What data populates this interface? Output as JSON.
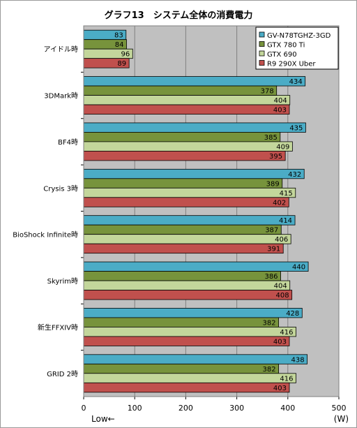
{
  "chart_data": {
    "type": "bar",
    "orientation": "horizontal",
    "title": "グラフ13　システム全体の消費電力",
    "categories": [
      "アイドル時",
      "3DMark時",
      "BF4時",
      "Crysis 3時",
      "BioShock Infinite時",
      "Skyrim時",
      "新生FFXIV時",
      "GRID 2時"
    ],
    "series": [
      {
        "name": "GV-N78TGHZ-3GD",
        "color": "#4bacc6",
        "values": [
          83,
          434,
          435,
          432,
          414,
          440,
          428,
          438
        ]
      },
      {
        "name": "GTX 780 Ti",
        "color": "#77933c",
        "values": [
          84,
          378,
          385,
          389,
          387,
          386,
          382,
          382
        ]
      },
      {
        "name": "GTX 690",
        "color": "#c3d69b",
        "values": [
          96,
          404,
          409,
          415,
          406,
          404,
          416,
          416
        ]
      },
      {
        "name": "R9 290X Uber",
        "color": "#c0504d",
        "values": [
          89,
          403,
          395,
          402,
          391,
          408,
          403,
          403
        ]
      }
    ],
    "xlim": [
      0,
      500
    ],
    "xticks": [
      "0",
      "100",
      "200",
      "300",
      "400",
      "500"
    ],
    "xlabel": "(W)",
    "direction_note": "Low←",
    "legend_position": "top-right",
    "grid": true,
    "plot_background": "#c0c0c0"
  }
}
